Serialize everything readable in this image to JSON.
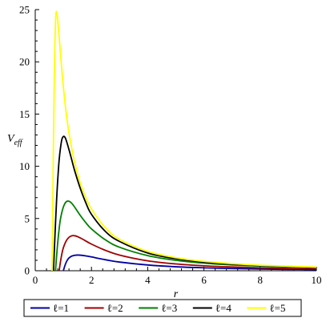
{
  "chart_data": {
    "type": "line",
    "title": "",
    "xlabel": "r",
    "ylabel": {
      "main": "V",
      "sub": "eff"
    },
    "xlim": [
      0,
      10
    ],
    "ylim": [
      0,
      25
    ],
    "x_ticks": [
      "0",
      "2",
      "4",
      "6",
      "8",
      "10"
    ],
    "y_ticks": [
      "0",
      "5",
      "10",
      "15",
      "20",
      "25"
    ],
    "grid": false,
    "legend_position": "bottom",
    "series": [
      {
        "name": "ℓ=1",
        "color": "#0000a0",
        "x": [
          1.0,
          1.05,
          1.1,
          1.15,
          1.2,
          1.3,
          1.4,
          1.5,
          1.6,
          1.8,
          2.0,
          2.5,
          3.0,
          4.0,
          5.0,
          6.0,
          7.0,
          8.0,
          9.0,
          10.0
        ],
        "y": [
          0,
          0.45,
          0.8,
          1.05,
          1.22,
          1.4,
          1.48,
          1.5,
          1.49,
          1.42,
          1.32,
          1.05,
          0.83,
          0.55,
          0.38,
          0.28,
          0.21,
          0.16,
          0.13,
          0.11
        ]
      },
      {
        "name": "ℓ=2",
        "color": "#a00000",
        "x": [
          0.85,
          0.9,
          0.95,
          1.0,
          1.1,
          1.2,
          1.3,
          1.4,
          1.5,
          1.7,
          2.0,
          2.5,
          3.0,
          4.0,
          5.0,
          6.0,
          7.0,
          8.0,
          9.0,
          10.0
        ],
        "y": [
          0,
          0.9,
          1.65,
          2.2,
          2.85,
          3.2,
          3.35,
          3.35,
          3.27,
          3.0,
          2.55,
          1.95,
          1.5,
          0.95,
          0.65,
          0.47,
          0.36,
          0.28,
          0.23,
          0.19
        ]
      },
      {
        "name": "ℓ=3",
        "color": "#008000",
        "x": [
          0.72,
          0.76,
          0.8,
          0.85,
          0.9,
          1.0,
          1.1,
          1.2,
          1.3,
          1.4,
          1.6,
          1.8,
          2.0,
          2.5,
          3.0,
          4.0,
          5.0,
          6.0,
          7.0,
          8.0,
          9.0,
          10.0
        ],
        "y": [
          0,
          1.4,
          2.7,
          4.0,
          5.0,
          6.1,
          6.6,
          6.65,
          6.45,
          6.1,
          5.3,
          4.6,
          4.0,
          2.95,
          2.25,
          1.45,
          1.0,
          0.73,
          0.56,
          0.45,
          0.37,
          0.31
        ]
      },
      {
        "name": "ℓ=4",
        "color": "#000000",
        "x": [
          0.65,
          0.68,
          0.72,
          0.76,
          0.8,
          0.85,
          0.9,
          0.95,
          1.0,
          1.05,
          1.1,
          1.2,
          1.3,
          1.4,
          1.6,
          1.8,
          2.0,
          2.5,
          3.0,
          4.0,
          5.0,
          6.0,
          7.0,
          8.0,
          9.0,
          10.0
        ],
        "y": [
          0,
          2.0,
          4.5,
          6.8,
          8.7,
          10.6,
          11.8,
          12.6,
          12.85,
          12.8,
          12.5,
          11.6,
          10.6,
          9.6,
          7.9,
          6.5,
          5.4,
          3.75,
          2.8,
          1.7,
          1.15,
          0.83,
          0.63,
          0.5,
          0.41,
          0.34
        ]
      },
      {
        "name": "ℓ=5",
        "color": "#ffff00",
        "x": [
          0.6,
          0.62,
          0.64,
          0.66,
          0.68,
          0.7,
          0.72,
          0.74,
          0.76,
          0.78,
          0.8,
          0.85,
          0.9,
          0.95,
          1.0,
          1.1,
          1.2,
          1.3,
          1.4,
          1.6,
          1.8,
          2.0,
          2.5,
          3.0,
          4.0,
          5.0,
          6.0,
          7.0,
          8.0,
          9.0,
          10.0
        ],
        "y": [
          0,
          5.5,
          10.5,
          15.0,
          18.8,
          21.8,
          23.8,
          24.7,
          24.8,
          24.5,
          24.0,
          22.4,
          20.7,
          19.1,
          17.6,
          15.1,
          13.2,
          11.7,
          10.4,
          8.4,
          7.0,
          5.9,
          4.1,
          3.0,
          1.85,
          1.25,
          0.9,
          0.68,
          0.53,
          0.43,
          0.35
        ]
      }
    ]
  }
}
